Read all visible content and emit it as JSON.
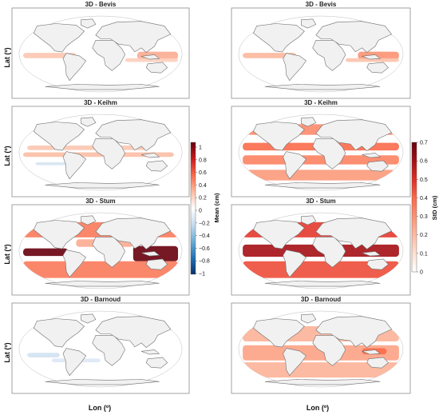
{
  "figure": {
    "ylabel": "Lat (º)",
    "xlabel": "Lon (º)"
  },
  "colorbars": {
    "mean": {
      "label": "Mean (cm)",
      "ticks": [
        "1",
        "0.8",
        "0.6",
        "0.4",
        "0.2",
        "0",
        "−0.2",
        "−0.4",
        "−0.6",
        "−0.8",
        "−1"
      ],
      "range": [
        -1,
        1
      ],
      "colors": [
        "#08306b",
        "#2171b5",
        "#6baed6",
        "#c6dbef",
        "#ffffff",
        "#fcbba1",
        "#fb6a4a",
        "#cb181d",
        "#67000d"
      ]
    },
    "std": {
      "label": "StD (cm)",
      "ticks": [
        "0.7",
        "0.6",
        "0.5",
        "0.4",
        "0.3",
        "0.2",
        "0.1",
        "0"
      ],
      "range": [
        0,
        0.7
      ],
      "colors": [
        "#ffffff",
        "#fde0d2",
        "#fcbba1",
        "#fc9272",
        "#fb6a4a",
        "#de2d26",
        "#a50f15",
        "#67000d"
      ]
    }
  },
  "chart_data": [
    {
      "type": "heatmap",
      "title": "3D - Bevis",
      "variable": "Mean (cm)",
      "max_abs_value": 0.3
    },
    {
      "type": "heatmap",
      "title": "3D - Bevis",
      "variable": "StD (cm)",
      "max_value": 0.3
    },
    {
      "type": "heatmap",
      "title": "3D - Keihm",
      "variable": "Mean (cm)",
      "max_abs_value": 0.3
    },
    {
      "type": "heatmap",
      "title": "3D - Keihm",
      "variable": "StD (cm)",
      "max_value": 0.4
    },
    {
      "type": "heatmap",
      "title": "3D - Stum",
      "variable": "Mean (cm)",
      "max_abs_value": 1.0
    },
    {
      "type": "heatmap",
      "title": "3D - Stum",
      "variable": "StD (cm)",
      "max_value": 0.6
    },
    {
      "type": "heatmap",
      "title": "3D - Barnoud",
      "variable": "Mean (cm)",
      "max_abs_value": 0.2
    },
    {
      "type": "heatmap",
      "title": "3D - Barnoud",
      "variable": "StD (cm)",
      "max_value": 0.4
    }
  ]
}
